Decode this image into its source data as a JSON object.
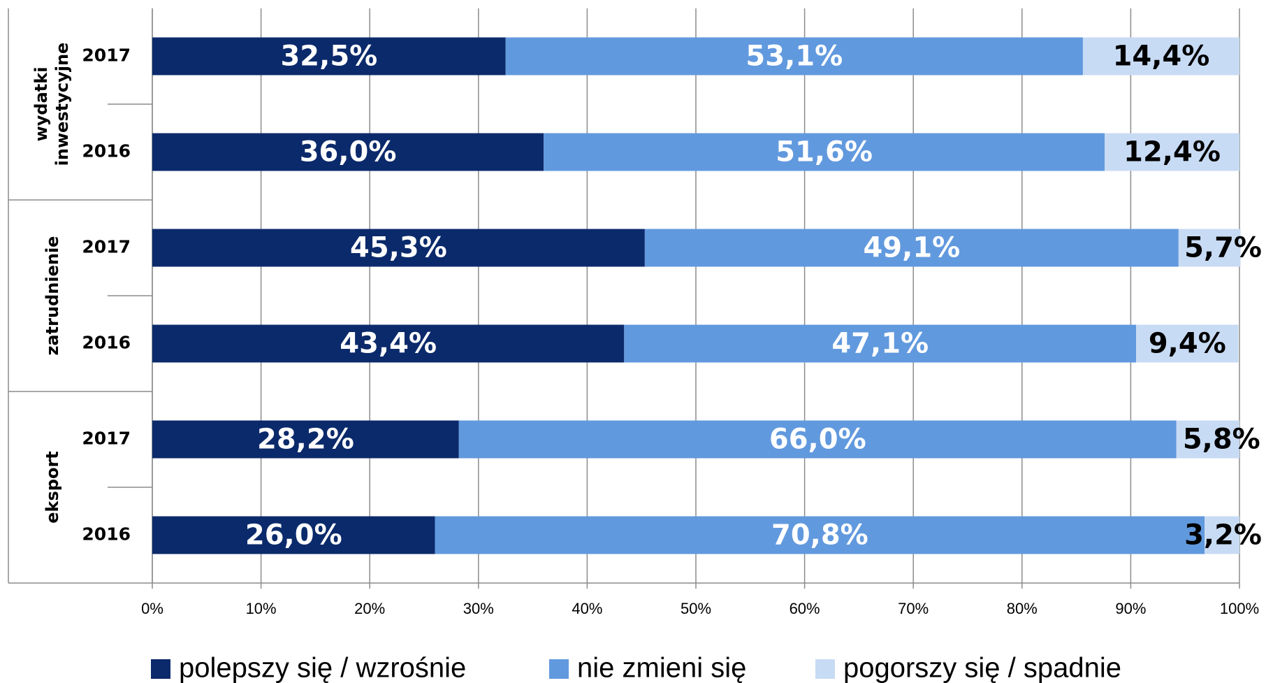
{
  "chart_data": {
    "type": "stacked-barh",
    "groups": [
      "wydatki inwestycyjne",
      "zatrudnienie",
      "eksport"
    ],
    "categories": [
      "2017",
      "2016",
      "2017",
      "2016",
      "2017",
      "2016"
    ],
    "series": [
      {
        "name": "polepszy się / wzrośnie",
        "color": "#0b2a6b",
        "label_color": "#ffffff",
        "values": [
          32.5,
          36.0,
          45.3,
          43.4,
          28.2,
          26.0
        ],
        "value_labels": [
          "32,5%",
          "36,0%",
          "45,3%",
          "43,4%",
          "28,2%",
          "26,0%"
        ]
      },
      {
        "name": "nie zmieni się",
        "color": "#6199de",
        "label_color": "#ffffff",
        "values": [
          53.1,
          51.6,
          49.1,
          47.1,
          66.0,
          70.8
        ],
        "value_labels": [
          "53,1%",
          "51,6%",
          "49,1%",
          "47,1%",
          "66,0%",
          "70,8%"
        ]
      },
      {
        "name": "pogorszy się / spadnie",
        "color": "#c8dbf4",
        "label_color": "#000000",
        "values": [
          14.4,
          12.4,
          5.7,
          9.4,
          5.8,
          3.2
        ],
        "value_labels": [
          "14,4%",
          "12,4%",
          "5,7%",
          "9,4%",
          "5,8%",
          "3,2%"
        ]
      }
    ],
    "xlim": [
      0,
      100
    ],
    "xticks": [
      {
        "value": 0,
        "label": "0%"
      },
      {
        "value": 10,
        "label": "10%"
      },
      {
        "value": 20,
        "label": "20%"
      },
      {
        "value": 30,
        "label": "30%"
      },
      {
        "value": 40,
        "label": "40%"
      },
      {
        "value": 50,
        "label": "50%"
      },
      {
        "value": 60,
        "label": "60%"
      },
      {
        "value": 70,
        "label": "70%"
      },
      {
        "value": 80,
        "label": "80%"
      },
      {
        "value": 90,
        "label": "90%"
      },
      {
        "value": 100,
        "label": "100%"
      }
    ],
    "grid": true,
    "legend": "bottom"
  }
}
